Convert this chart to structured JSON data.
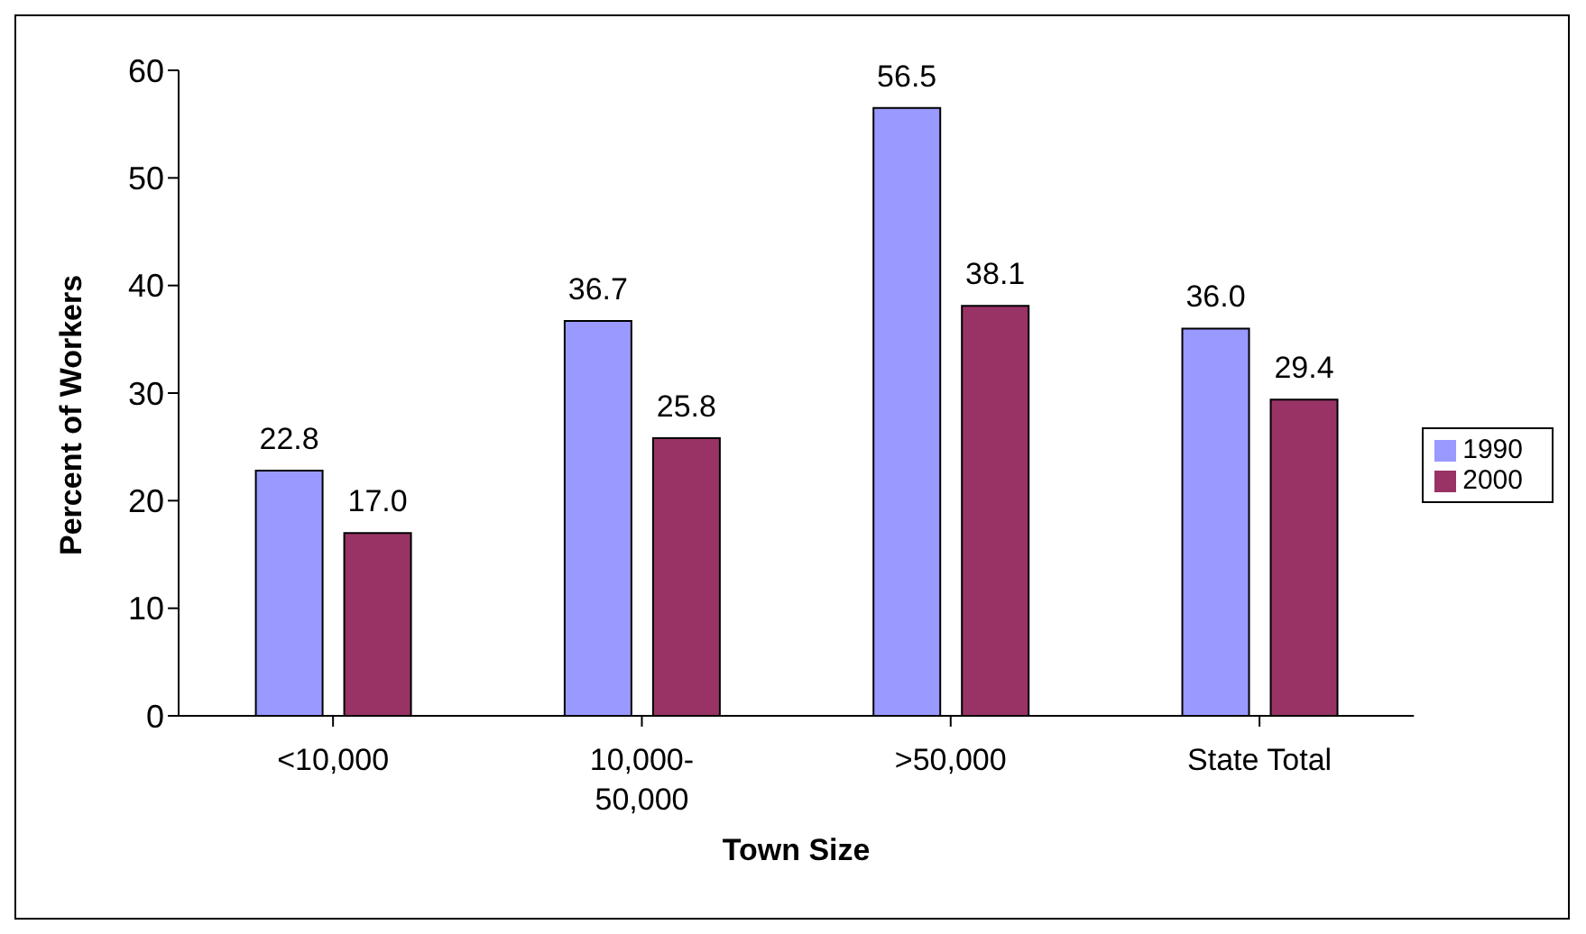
{
  "chart_data": {
    "type": "bar",
    "xlabel": "Town Size",
    "ylabel": "Percent of Workers",
    "categories": [
      "<10,000",
      "10,000-50,000",
      ">50,000",
      "State Total"
    ],
    "series": [
      {
        "name": "1990",
        "color": "#9999ff",
        "values": [
          22.8,
          36.7,
          56.5,
          36.0
        ],
        "value_labels": [
          "22.8",
          "36.7",
          "56.5",
          "36.0"
        ]
      },
      {
        "name": "2000",
        "color": "#993366",
        "values": [
          17.0,
          25.8,
          38.1,
          29.4
        ],
        "value_labels": [
          "17.0",
          "25.8",
          "38.1",
          "29.4"
        ]
      }
    ],
    "ylim": [
      0,
      60
    ],
    "yticks": [
      0,
      10,
      20,
      30,
      40,
      50,
      60
    ],
    "grid": false,
    "legend": "right"
  }
}
